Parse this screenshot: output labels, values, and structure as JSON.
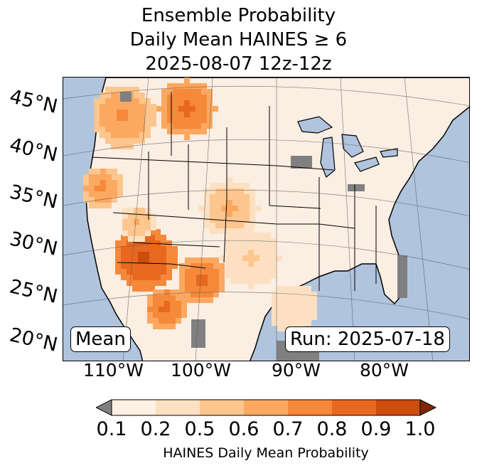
{
  "title": {
    "line1": "Ensemble Probability",
    "line2": "Daily Mean HAINES ≥ 6",
    "line3": "2025-08-07 12z-12z"
  },
  "map": {
    "background_color": "#b0c4de",
    "land_color": "#fbeee2",
    "lat_labels": [
      "45°N",
      "40°N",
      "35°N",
      "30°N",
      "25°N",
      "20°N"
    ],
    "lon_labels": [
      "110°W",
      "100°W",
      "90°W",
      "80°W"
    ],
    "stat_label": "Mean",
    "run_label": "Run: 2025-07-18"
  },
  "colorbar": {
    "label": "HAINES Daily Mean Probability",
    "ticks": [
      "0.1",
      "0.2",
      "0.5",
      "0.6",
      "0.7",
      "0.8",
      "0.9",
      "1.0"
    ],
    "under_color": "#808080",
    "colors": [
      "#fef1e4",
      "#fde0c2",
      "#fdc68e",
      "#fca860",
      "#f6883a",
      "#e86820",
      "#cc4d0e"
    ],
    "over_color": "#7f2704"
  }
}
